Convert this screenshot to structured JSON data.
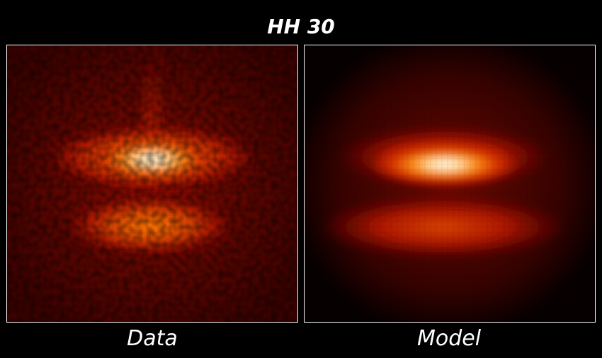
{
  "title": "HH 30",
  "panels": [
    {
      "label": "Data"
    },
    {
      "label": "Model"
    }
  ]
}
